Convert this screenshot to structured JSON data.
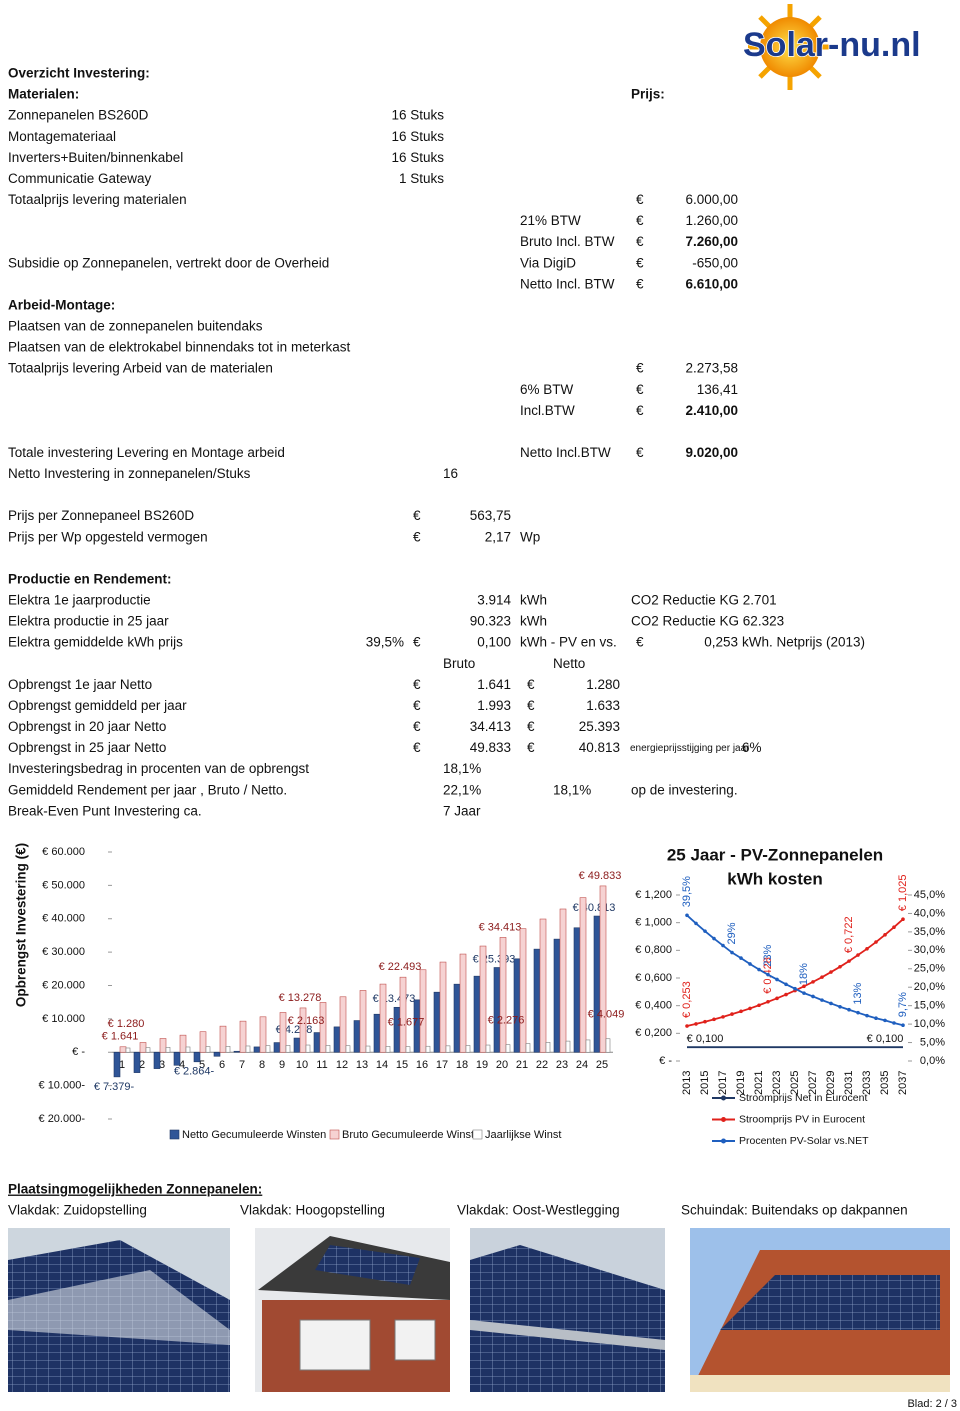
{
  "logo": "Solar-nu.nl",
  "rows": [
    {
      "label": "Overzicht Investering:"
    },
    {
      "label": "Materialen:",
      "col5": "Prijs:"
    },
    {
      "label": "Zonnepanelen BS260D",
      "qty": "16 Stuks"
    },
    {
      "label": "Montagemateriaal",
      "qty": "16 Stuks"
    },
    {
      "label": "Inverters+Buiten/binnenkabel",
      "qty": "16 Stuks"
    },
    {
      "label": "Communicatie Gateway",
      "qty": "1 Stuks"
    },
    {
      "label": "Totaalprijs levering materialen",
      "eur3": "€",
      "amount": "6.000,00"
    },
    {
      "unit": "21% BTW",
      "eur3": "€",
      "amount": "1.260,00"
    },
    {
      "unit": "Bruto Incl. BTW",
      "eur3": "€",
      "amount": "7.260,00"
    },
    {
      "label": "Subsidie op Zonnepanelen, vertrekt door de Overheid",
      "unit": "Via DigiD",
      "eur3": "€",
      "amount": "-650,00"
    },
    {
      "unit": "Netto Incl. BTW",
      "eur3": "€",
      "amount": "6.610,00"
    },
    {
      "label": "Arbeid-Montage:"
    },
    {
      "label": "Plaatsen van de zonnepanelen buitendaks"
    },
    {
      "label": "Plaatsen van de elektrokabel binnendaks tot in meterkast"
    },
    {
      "label": "Totaalprijs levering  Arbeid van de materialen",
      "eur3": "€",
      "amount": "2.273,58"
    },
    {
      "unit": "6% BTW",
      "eur3": "€",
      "amount": "136,41"
    },
    {
      "unit": "Incl.BTW",
      "eur3": "€",
      "amount": "2.410,00"
    },
    {
      "label": "Totale investering Levering en Montage arbeid",
      "unit": "Netto Incl.BTW",
      "eur3": "€",
      "amount": "9.020,00"
    },
    {
      "label": "Netto Investering in  zonnepanelen/Stuks",
      "mid": "16"
    },
    {
      "label": "Prijs per Zonnepaneel BS260D",
      "eur1": "€",
      "num1": "563,75"
    },
    {
      "label": "Prijs per Wp opgesteld vermogen",
      "eur1": "€",
      "num1": "2,17",
      "unit": "Wp"
    },
    {
      "label": "Productie en Rendement:"
    },
    {
      "label": "Elektra 1e  jaarproductie",
      "num1": "3.914",
      "unit": "kWh",
      "col5": "CO2 Reductie KG 2.701"
    },
    {
      "label": "Elektra productie in 25 jaar",
      "num1": "90.323",
      "unit": "kWh",
      "col5": "CO2 Reductie KG 62.323"
    },
    {
      "label": "Elektra gemiddelde kWh prijs",
      "pct": "39,5%",
      "eur1": "€",
      "num1": "0,100",
      "unit": "kWh - PV en vs.",
      "eur3": "€",
      "amount": "0,253",
      "tail": "kWh. Netprijs (2013)"
    },
    {
      "mid": "Bruto",
      "n2h": "Netto"
    },
    {
      "label": "Opbrengst 1e jaar Netto",
      "eur1": "€",
      "num1": "1.641",
      "eur2": "€",
      "num2": "1.280"
    },
    {
      "label": "Opbrengst gemiddeld per jaar",
      "eur1": "€",
      "num1": "1.993",
      "eur2": "€",
      "num2": "1.633"
    },
    {
      "label": "Opbrengst in 20 jaar Netto",
      "eur1": "€",
      "num1": "34.413",
      "eur2": "€",
      "num2": "25.393"
    },
    {
      "label": "Opbrengst in 25 jaar Netto",
      "eur1": "€",
      "num1": "49.833",
      "eur2": "€",
      "num2": "40.813",
      "note": "energieprijsstijging per jaar",
      "tail": "6%"
    },
    {
      "label": "Investeringsbedrag in procenten van de opbrengst",
      "mid": "18,1%"
    },
    {
      "label": "Gemiddeld Rendement per jaar , Bruto / Netto.",
      "mid": "22,1%",
      "n2h": "18,1%",
      "col5": "op de investering."
    },
    {
      "label": "Break-Even Punt Investering ca.",
      "mid": "7 Jaar"
    }
  ],
  "chart_data": [
    {
      "type": "bar",
      "y_label": "Opbrengst  Investering (€)",
      "categories": [
        1,
        2,
        3,
        4,
        5,
        6,
        7,
        8,
        9,
        10,
        11,
        12,
        13,
        14,
        15,
        16,
        17,
        18,
        19,
        20,
        21,
        22,
        23,
        24,
        25
      ],
      "series": [
        {
          "name": "Netto Gecumuleerde Winsten",
          "color": "#2f5597",
          "values": [
            -7379,
            -6100,
            -4900,
            -3900,
            -2864,
            -1200,
            300,
            1600,
            2900,
            4258,
            5900,
            7600,
            9500,
            11400,
            13473,
            15700,
            18000,
            20400,
            22800,
            25393,
            28000,
            30900,
            33900,
            37300,
            40813
          ],
          "value_labels": [
            "€ 7.379-",
            null,
            null,
            null,
            "€ 2.864-",
            null,
            null,
            null,
            null,
            "€ 4.258",
            null,
            null,
            null,
            null,
            "€ 13.473",
            null,
            null,
            null,
            null,
            "€ 25.393",
            null,
            null,
            null,
            null,
            "€ 40.813"
          ]
        },
        {
          "name": "Bruto Gecumuleerde Winst",
          "color": "#f6d2d2",
          "values": [
            1641,
            2920,
            4120,
            5120,
            6156,
            7820,
            9320,
            10620,
            11920,
            13278,
            14920,
            16620,
            18520,
            20420,
            22493,
            24720,
            27020,
            29420,
            31820,
            34413,
            37020,
            39920,
            42920,
            46320,
            49833
          ],
          "value_labels": [
            "€ 1.641",
            null,
            null,
            null,
            null,
            null,
            null,
            null,
            null,
            "€ 13.278",
            null,
            null,
            null,
            null,
            "€ 22.493",
            null,
            null,
            null,
            null,
            "€ 34.413",
            null,
            null,
            null,
            null,
            "€ 49.833"
          ]
        },
        {
          "name": "Jaarlijkse Winst",
          "color": "#ffffff",
          "values": [
            1280,
            1380,
            1480,
            1580,
            1680,
            1780,
            1880,
            1980,
            2070,
            2163,
            2060,
            1960,
            1860,
            1770,
            1677,
            1800,
            1920,
            2040,
            2160,
            2276,
            2630,
            2980,
            3340,
            3690,
            4049
          ],
          "value_labels": [
            "€ 1.280",
            null,
            null,
            null,
            null,
            null,
            null,
            null,
            null,
            "€ 2.163",
            null,
            null,
            null,
            null,
            "€ 1.677",
            null,
            null,
            null,
            null,
            "€ 2.276",
            null,
            null,
            null,
            null,
            "€ 4.049"
          ]
        }
      ],
      "ylim": [
        -20000,
        60000
      ],
      "yticks": [
        {
          "value": -20000,
          "label": "€ 20.000-"
        },
        {
          "value": -10000,
          "label": "€ 10.000-"
        },
        {
          "value": 0,
          "label": "€ -"
        },
        {
          "value": 10000,
          "label": "€ 10.000"
        },
        {
          "value": 20000,
          "label": "€ 20.000"
        },
        {
          "value": 30000,
          "label": "€ 30.000"
        },
        {
          "value": 40000,
          "label": "€ 40.000"
        },
        {
          "value": 50000,
          "label": "€ 50.000"
        },
        {
          "value": 60000,
          "label": "€ 60.000"
        }
      ],
      "grid": false,
      "legend": "bottom"
    },
    {
      "type": "line",
      "title": [
        "25 Jaar - PV-Zonnepanelen",
        "kWh kosten"
      ],
      "x": [
        2013,
        2014,
        2015,
        2016,
        2017,
        2018,
        2019,
        2020,
        2021,
        2022,
        2023,
        2024,
        2025,
        2026,
        2027,
        2028,
        2029,
        2030,
        2031,
        2032,
        2033,
        2034,
        2035,
        2036,
        2037
      ],
      "xlim": [
        2013,
        2037
      ],
      "xticks": [
        2013,
        2015,
        2017,
        2019,
        2021,
        2023,
        2025,
        2027,
        2029,
        2031,
        2033,
        2035,
        2037
      ],
      "series": [
        {
          "name": "Stroomprijs Net in Eurocent",
          "color": "#1f3864",
          "values": [
            0.1,
            0.1,
            0.1,
            0.1,
            0.1,
            0.1,
            0.1,
            0.1,
            0.1,
            0.1,
            0.1,
            0.1,
            0.1,
            0.1,
            0.1,
            0.1,
            0.1,
            0.1,
            0.1,
            0.1,
            0.1,
            0.1,
            0.1,
            0.1,
            0.1
          ],
          "value_labels": [
            null,
            null,
            "€ 0,100",
            null,
            null,
            null,
            null,
            null,
            null,
            null,
            null,
            null,
            null,
            null,
            null,
            null,
            null,
            null,
            null,
            null,
            null,
            null,
            "€ 0,100",
            null,
            null
          ]
        },
        {
          "name": "Stroomprijs PV in Eurocent",
          "color": "#e0211b",
          "values": [
            0.253,
            0.268,
            0.284,
            0.301,
            0.319,
            0.339,
            0.359,
            0.38,
            0.403,
            0.428,
            0.453,
            0.48,
            0.509,
            0.54,
            0.572,
            0.606,
            0.643,
            0.681,
            0.722,
            0.766,
            0.811,
            0.86,
            0.912,
            0.967,
            1.025
          ],
          "value_labels": [
            "€ 0,253",
            null,
            null,
            null,
            null,
            null,
            null,
            null,
            null,
            "€ 0,428",
            null,
            null,
            null,
            null,
            null,
            null,
            null,
            null,
            "€ 0,722",
            null,
            null,
            null,
            null,
            null,
            "€ 1,025"
          ]
        },
        {
          "name": "Procenten PV-Solar vs.NET",
          "color": "#1f5fbf",
          "axis": "y2",
          "values": [
            39.5,
            37.3,
            35.2,
            33.2,
            31.3,
            29.4,
            27.9,
            26.3,
            24.8,
            23.4,
            22.1,
            20.8,
            19.6,
            18.4,
            17.5,
            16.5,
            15.6,
            14.7,
            13.9,
            13.1,
            12.3,
            11.6,
            11.0,
            10.3,
            9.7
          ],
          "value_labels": [
            "39,5%",
            null,
            null,
            null,
            null,
            "29%",
            null,
            null,
            null,
            "23%",
            null,
            null,
            null,
            "18%",
            null,
            null,
            null,
            null,
            null,
            "13%",
            null,
            null,
            null,
            null,
            "9,7%"
          ]
        }
      ],
      "ylim": [
        0,
        1.2
      ],
      "yticks": [
        {
          "value": 0,
          "label": "€ -"
        },
        {
          "value": 0.2,
          "label": "€ 0,200"
        },
        {
          "value": 0.4,
          "label": "€ 0,400"
        },
        {
          "value": 0.6,
          "label": "€ 0,600"
        },
        {
          "value": 0.8,
          "label": "€ 0,800"
        },
        {
          "value": 1.0,
          "label": "€ 1,000"
        },
        {
          "value": 1.2,
          "label": "€ 1,200"
        }
      ],
      "y2lim": [
        0,
        45
      ],
      "y2ticks": [
        {
          "value": 0,
          "label": "0,0%"
        },
        {
          "value": 5,
          "label": "5,0%"
        },
        {
          "value": 10,
          "label": "10,0%"
        },
        {
          "value": 15,
          "label": "15,0%"
        },
        {
          "value": 20,
          "label": "20,0%"
        },
        {
          "value": 25,
          "label": "25,0%"
        },
        {
          "value": 30,
          "label": "30,0%"
        },
        {
          "value": 35,
          "label": "35,0%"
        },
        {
          "value": 40,
          "label": "40,0%"
        },
        {
          "value": 45,
          "label": "45,0%"
        }
      ],
      "grid": false,
      "legend": "bottom"
    }
  ],
  "placement": {
    "title": "Plaatsingmogelijkheden Zonnepanelen:",
    "captions": [
      "Vlakdak: Zuidopstelling",
      "Vlakdak: Hoogopstelling",
      "Vlakdak: Oost-Westlegging",
      "Schuindak: Buitendaks op dakpannen"
    ]
  },
  "footer": "Blad: 2 / 3"
}
